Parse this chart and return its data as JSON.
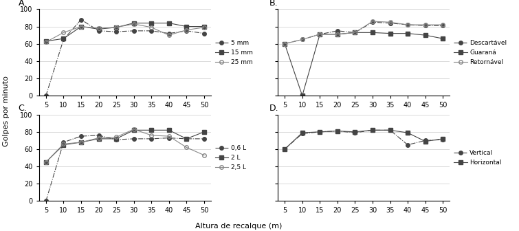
{
  "x": [
    5,
    10,
    15,
    20,
    25,
    30,
    35,
    40,
    45,
    50
  ],
  "A": {
    "label": "A.",
    "series": {
      "5 mm": [
        0,
        65,
        88,
        75,
        74,
        75,
        75,
        72,
        75,
        72
      ],
      "15 mm": [
        63,
        66,
        80,
        77,
        79,
        84,
        84,
        84,
        80,
        80
      ],
      "25 mm": [
        62,
        73,
        80,
        78,
        79,
        83,
        79,
        70,
        76,
        79
      ]
    },
    "styles": {
      "5 mm": {
        "linestyle": "-.",
        "marker": "o",
        "color": "#444444",
        "markersize": 4,
        "fillstyle": "full"
      },
      "15 mm": {
        "linestyle": "-",
        "marker": "s",
        "color": "#444444",
        "markersize": 4,
        "fillstyle": "full"
      },
      "25 mm": {
        "linestyle": "-",
        "marker": "o",
        "color": "#888888",
        "markersize": 4,
        "fillstyle": "none"
      }
    }
  },
  "B": {
    "label": "B.",
    "series": {
      "Descartável": [
        60,
        65,
        71,
        75,
        73,
        85,
        84,
        82,
        81,
        81
      ],
      "Guaraná": [
        60,
        0,
        71,
        71,
        73,
        73,
        72,
        72,
        70,
        66
      ],
      "Retornável": [
        60,
        65,
        71,
        71,
        73,
        86,
        85,
        82,
        82,
        82
      ]
    },
    "styles": {
      "Descartável": {
        "linestyle": "-.",
        "marker": "o",
        "color": "#444444",
        "markersize": 4,
        "fillstyle": "full"
      },
      "Guaraná": {
        "linestyle": "-",
        "marker": "s",
        "color": "#444444",
        "markersize": 4,
        "fillstyle": "full"
      },
      "Retornável": {
        "linestyle": "-",
        "marker": "o",
        "color": "#888888",
        "markersize": 4,
        "fillstyle": "none"
      }
    }
  },
  "C": {
    "label": "C.",
    "series": {
      "0,6 L": [
        0,
        68,
        75,
        76,
        71,
        72,
        72,
        73,
        72,
        72
      ],
      "2 L": [
        45,
        65,
        68,
        72,
        72,
        82,
        82,
        82,
        72,
        80
      ],
      "2,5 L": [
        45,
        66,
        68,
        73,
        74,
        83,
        76,
        75,
        62,
        53
      ]
    },
    "styles": {
      "0,6 L": {
        "linestyle": "-.",
        "marker": "o",
        "color": "#444444",
        "markersize": 4,
        "fillstyle": "full"
      },
      "2 L": {
        "linestyle": "-",
        "marker": "s",
        "color": "#444444",
        "markersize": 4,
        "fillstyle": "full"
      },
      "2,5 L": {
        "linestyle": "-",
        "marker": "o",
        "color": "#888888",
        "markersize": 4,
        "fillstyle": "none"
      }
    }
  },
  "D": {
    "label": "D.",
    "series": {
      "Vertical": [
        60,
        78,
        80,
        81,
        79,
        82,
        82,
        65,
        70,
        71
      ],
      "Horizontal": [
        60,
        79,
        80,
        81,
        80,
        82,
        82,
        79,
        69,
        72
      ]
    },
    "styles": {
      "Vertical": {
        "linestyle": "-.",
        "marker": "o",
        "color": "#444444",
        "markersize": 4,
        "fillstyle": "full"
      },
      "Horizontal": {
        "linestyle": "-",
        "marker": "s",
        "color": "#444444",
        "markersize": 4,
        "fillstyle": "full"
      }
    }
  },
  "ylabel": "Golpes por minuto",
  "xlabel": "Altura de recalque (m)",
  "ylim": [
    0,
    100
  ],
  "yticks": [
    0,
    20,
    40,
    60,
    80,
    100
  ],
  "xticks": [
    5,
    10,
    15,
    20,
    25,
    30,
    35,
    40,
    45,
    50
  ],
  "background_color": "#ffffff",
  "grid_color": "#cccccc",
  "legend_panels": [
    "A",
    "B",
    "C",
    "D"
  ]
}
